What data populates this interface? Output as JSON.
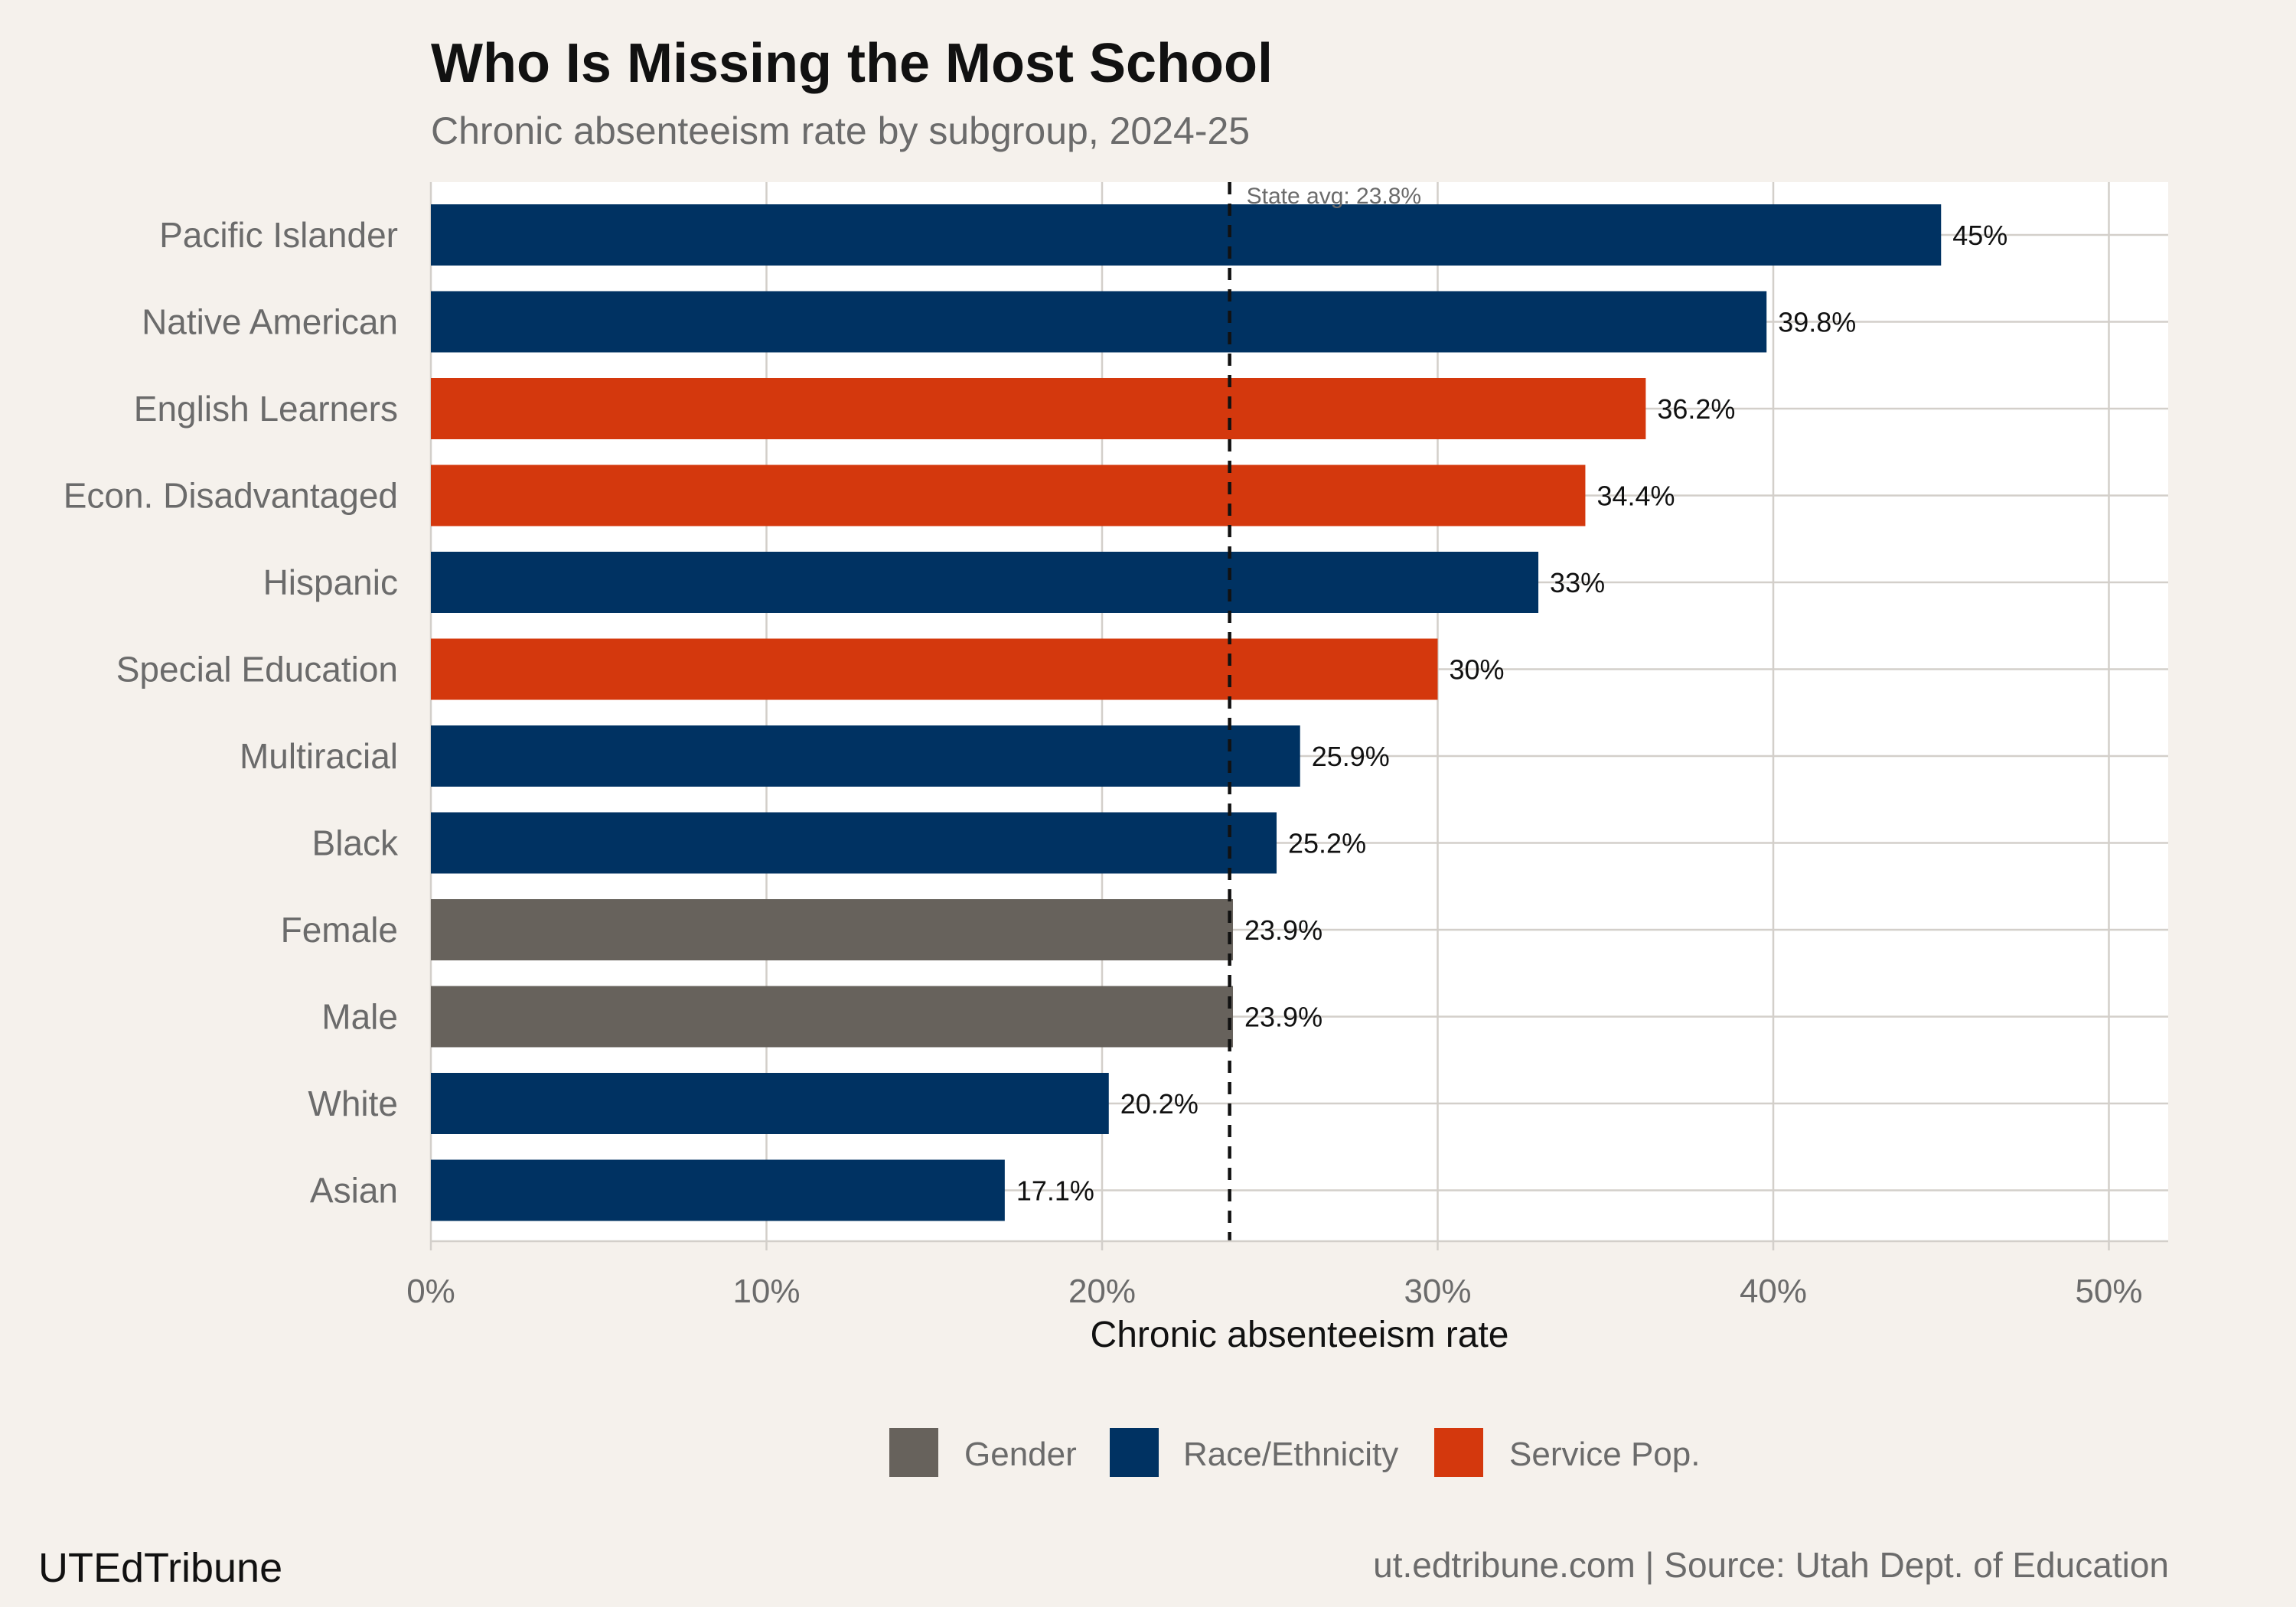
{
  "header": {
    "title": "Who Is Missing the Most School",
    "subtitle": "Chronic absenteeism rate by subgroup, 2024-25"
  },
  "footer": {
    "brand": "UTEdTribune",
    "source": "ut.edtribune.com | Source: Utah Dept. of Education"
  },
  "colors": {
    "Gender": "#67625c",
    "Race/Ethnicity": "#003262",
    "Service Pop.": "#d4380d",
    "background": "#f5f1ec",
    "panel": "#ffffff",
    "grid": "#d3cfca"
  },
  "chart_data": {
    "type": "bar",
    "orientation": "horizontal",
    "title": "Who Is Missing the Most School",
    "subtitle": "Chronic absenteeism rate by subgroup, 2024-25",
    "xlabel": "Chronic absenteeism rate",
    "ylabel": "",
    "xlim": [
      0,
      52
    ],
    "xticks": [
      0,
      10,
      20,
      30,
      40,
      50
    ],
    "xtick_labels": [
      "0%",
      "10%",
      "20%",
      "30%",
      "40%",
      "50%"
    ],
    "grid": true,
    "legend_position": "bottom",
    "legend": [
      "Gender",
      "Race/Ethnicity",
      "Service Pop."
    ],
    "reference_line": {
      "value": 23.8,
      "label": "State avg: 23.8%",
      "style": "dashed"
    },
    "categories": [
      "Pacific Islander",
      "Native American",
      "English Learners",
      "Econ. Disadvantaged",
      "Hispanic",
      "Special Education",
      "Multiracial",
      "Black",
      "Female",
      "Male",
      "White",
      "Asian"
    ],
    "values": [
      45,
      39.8,
      36.2,
      34.4,
      33,
      30,
      25.9,
      25.2,
      23.9,
      23.9,
      20.2,
      17.1
    ],
    "value_labels": [
      "45%",
      "39.8%",
      "36.2%",
      "34.4%",
      "33%",
      "30%",
      "25.9%",
      "25.2%",
      "23.9%",
      "23.9%",
      "20.2%",
      "17.1%"
    ],
    "groups": [
      "Race/Ethnicity",
      "Race/Ethnicity",
      "Service Pop.",
      "Service Pop.",
      "Race/Ethnicity",
      "Service Pop.",
      "Race/Ethnicity",
      "Race/Ethnicity",
      "Gender",
      "Gender",
      "Race/Ethnicity",
      "Race/Ethnicity"
    ]
  }
}
